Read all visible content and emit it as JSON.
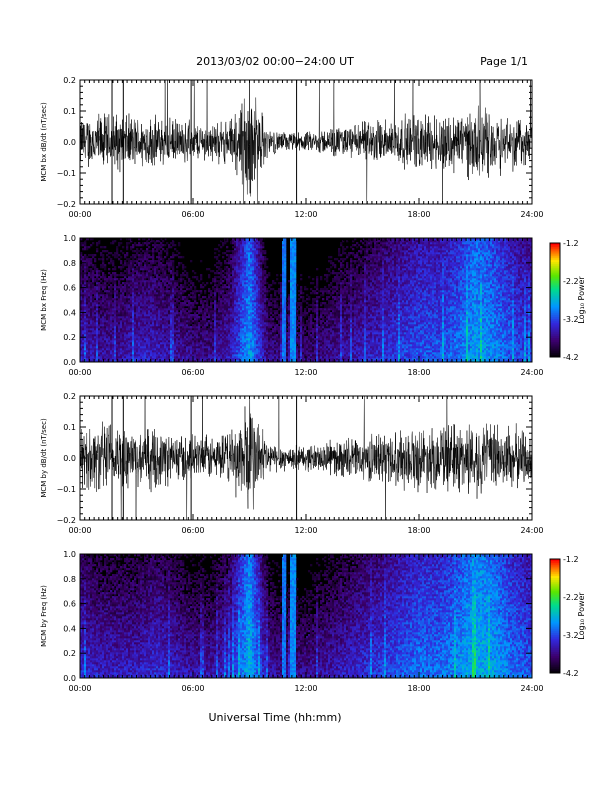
{
  "header": {
    "title": "2013/03/02  00:00−24:00 UT",
    "page": "Page 1/1"
  },
  "footer": {
    "xlabel": "Universal Time (hh:mm)"
  },
  "colorbar": {
    "label": "Log₁₀ Power",
    "ticks": [
      "-1.2",
      "-2.2",
      "-3.2",
      "-4.2"
    ],
    "range": [
      -4.2,
      -1.2
    ]
  },
  "chart_data": [
    {
      "type": "line",
      "ylabel": "MCM bx dB/dt (nT/sec)",
      "xlim": [
        "00:00",
        "24:00"
      ],
      "ylim": [
        -0.2,
        0.2
      ],
      "xticks": [
        "00:00",
        "06:00",
        "12:00",
        "18:00",
        "24:00"
      ],
      "yticks": [
        "0.2",
        "0.1",
        "0.0",
        "−0.1",
        "−0.2"
      ],
      "series": [
        {
          "x_hours": [
            0,
            1,
            2,
            3,
            4,
            5,
            6,
            7,
            8,
            9,
            10,
            11,
            12,
            13,
            14,
            15,
            16,
            17,
            18,
            19,
            20,
            21,
            22,
            23,
            24
          ],
          "envelope": [
            0.08,
            0.09,
            0.09,
            0.08,
            0.08,
            0.07,
            0.06,
            0.06,
            0.07,
            0.2,
            0.04,
            0.03,
            0.03,
            0.04,
            0.05,
            0.06,
            0.07,
            0.08,
            0.09,
            0.09,
            0.1,
            0.11,
            0.1,
            0.09,
            0.08
          ]
        }
      ]
    },
    {
      "type": "heatmap",
      "ylabel": "MCM bx Freq (Hz)",
      "xlim": [
        "00:00",
        "24:00"
      ],
      "ylim": [
        0.0,
        1.0
      ],
      "xticks": [
        "00:00",
        "06:00",
        "12:00",
        "18:00",
        "24:00"
      ],
      "yticks": [
        "1.0",
        "0.8",
        "0.6",
        "0.4",
        "0.2",
        "0.0"
      ],
      "value_units": "log10 power",
      "x_hours": [
        0,
        1,
        2,
        3,
        4,
        5,
        6,
        7,
        8,
        9,
        10,
        11,
        12,
        13,
        14,
        15,
        16,
        17,
        18,
        19,
        20,
        21,
        22,
        23,
        24
      ],
      "low_freq_level": [
        -3.4,
        -3.5,
        -3.5,
        -3.4,
        -3.4,
        -3.5,
        -3.6,
        -3.6,
        -3.4,
        -2.8,
        -3.6,
        -3.7,
        -3.7,
        -3.6,
        -3.5,
        -3.4,
        -3.3,
        -3.2,
        -3.1,
        -3.1,
        -3.0,
        -2.8,
        -2.9,
        -3.1,
        -3.2
      ]
    },
    {
      "type": "line",
      "ylabel": "MCM by dB/dt (nT/sec)",
      "xlim": [
        "00:00",
        "24:00"
      ],
      "ylim": [
        -0.2,
        0.2
      ],
      "xticks": [
        "00:00",
        "06:00",
        "12:00",
        "18:00",
        "24:00"
      ],
      "yticks": [
        "0.2",
        "0.1",
        "0.0",
        "−0.1",
        "−0.2"
      ],
      "series": [
        {
          "x_hours": [
            0,
            1,
            2,
            3,
            4,
            5,
            6,
            7,
            8,
            9,
            10,
            11,
            12,
            13,
            14,
            15,
            16,
            17,
            18,
            19,
            20,
            21,
            22,
            23,
            24
          ],
          "envelope": [
            0.09,
            0.11,
            0.11,
            0.1,
            0.09,
            0.08,
            0.07,
            0.07,
            0.08,
            0.2,
            0.05,
            0.04,
            0.04,
            0.05,
            0.06,
            0.07,
            0.08,
            0.09,
            0.1,
            0.1,
            0.11,
            0.12,
            0.11,
            0.1,
            0.09
          ]
        }
      ]
    },
    {
      "type": "heatmap",
      "ylabel": "MCM by Freq (Hz)",
      "xlim": [
        "00:00",
        "24:00"
      ],
      "ylim": [
        0.0,
        1.0
      ],
      "xticks": [
        "00:00",
        "06:00",
        "12:00",
        "18:00",
        "24:00"
      ],
      "yticks": [
        "1.0",
        "0.8",
        "0.6",
        "0.4",
        "0.2",
        "0.0"
      ],
      "value_units": "log10 power",
      "x_hours": [
        0,
        1,
        2,
        3,
        4,
        5,
        6,
        7,
        8,
        9,
        10,
        11,
        12,
        13,
        14,
        15,
        16,
        17,
        18,
        19,
        20,
        21,
        22,
        23,
        24
      ],
      "low_freq_level": [
        -3.3,
        -3.4,
        -3.4,
        -3.4,
        -3.3,
        -3.4,
        -3.5,
        -3.5,
        -3.3,
        -2.7,
        -3.5,
        -3.6,
        -3.6,
        -3.5,
        -3.4,
        -3.3,
        -3.2,
        -3.1,
        -3.0,
        -3.0,
        -2.9,
        -2.7,
        -2.8,
        -3.0,
        -3.1
      ]
    }
  ]
}
